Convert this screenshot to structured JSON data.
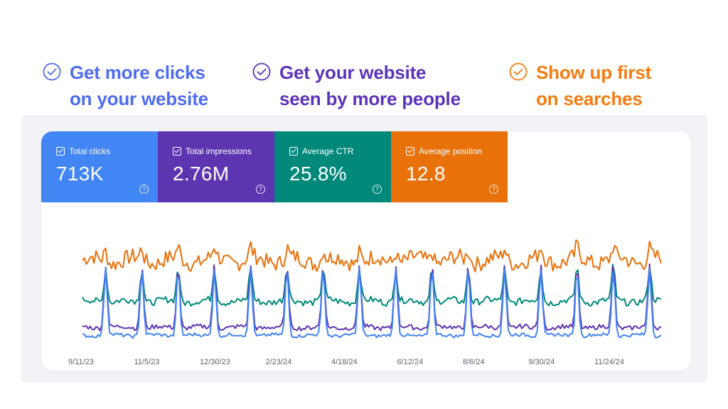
{
  "benefits": [
    {
      "line1": "Get more clicks",
      "line2": "on your website",
      "color": "#4e6cf0",
      "icon": "check-circle-icon"
    },
    {
      "line1": "Get your website",
      "line2": "seen by more people",
      "color": "#5b34b8",
      "icon": "check-circle-icon"
    },
    {
      "line1": "Show up first",
      "line2": "on searches",
      "color": "#f57c10",
      "icon": "check-circle-icon"
    }
  ],
  "metrics": [
    {
      "label": "Total clicks",
      "value": "713K",
      "color": "#4285f4",
      "help_icon": "?"
    },
    {
      "label": "Total impressions",
      "value": "2.76M",
      "color": "#5e35b1",
      "help_icon": "?"
    },
    {
      "label": "Average CTR",
      "value": "25.8%",
      "color": "#00897b",
      "help_icon": "?"
    },
    {
      "label": "Average position",
      "value": "12.8",
      "color": "#e8710a",
      "help_icon": "?"
    }
  ],
  "chart_data": {
    "type": "line",
    "x_ticks": [
      "9/11/23",
      "11/5/23",
      "12/30/23",
      "2/23/24",
      "4/18/24",
      "6/12/24",
      "8/6/24",
      "9/30/24",
      "11/24/24"
    ],
    "series": [
      {
        "name": "Average position",
        "color": "#e8710a",
        "level": 0.74,
        "spike": 0.1,
        "noise": 0.07
      },
      {
        "name": "Average CTR",
        "color": "#00897b",
        "level": 0.38,
        "spike": 0.3,
        "noise": 0.03
      },
      {
        "name": "Total impressions",
        "color": "#5e35b1",
        "level": 0.15,
        "spike": 0.55,
        "noise": 0.02
      },
      {
        "name": "Total clicks",
        "color": "#4285f4",
        "level": 0.08,
        "spike": 0.6,
        "noise": 0.015
      }
    ],
    "spike_count": 16
  }
}
